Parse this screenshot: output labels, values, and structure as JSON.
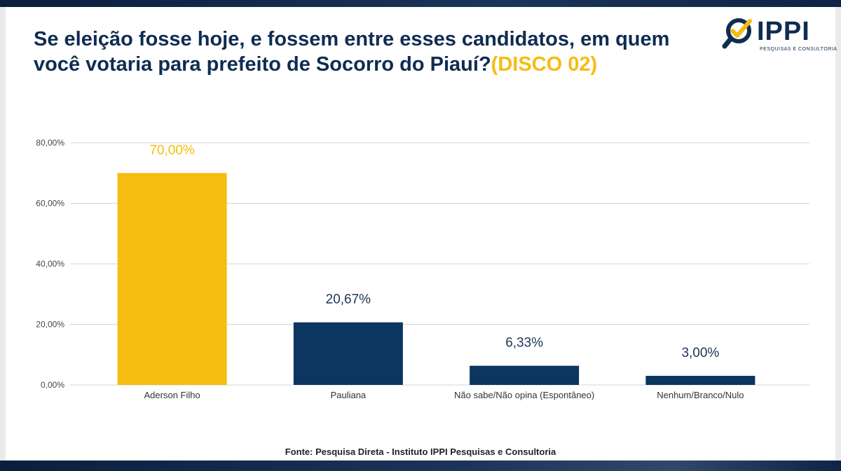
{
  "title": {
    "main": "Se eleição fosse hoje, e fossem entre esses candidatos, em quem você votaria para prefeito de Socorro do Piauí?",
    "highlight": "(DISCO 02)"
  },
  "logo": {
    "text": "IPPI",
    "subtitle": "PESQUISAS E CONSULTORIA",
    "icon": "magnifier-check-icon"
  },
  "colors": {
    "accent": "#f5bd0f",
    "primary": "#0c3560",
    "title": "#0f2c52"
  },
  "chart_data": {
    "type": "bar",
    "categories": [
      "Aderson Filho",
      "Pauliana",
      "Não sabe/Não opina (Espontâneo)",
      "Nenhum/Branco/Nulo"
    ],
    "values": [
      70.0,
      20.67,
      6.33,
      3.0
    ],
    "data_labels": [
      "70,00%",
      "20,67%",
      "6,33%",
      "3,00%"
    ],
    "bar_colors": [
      "#f5bd0f",
      "#0c3560",
      "#0c3560",
      "#0c3560"
    ],
    "ylim": [
      0,
      80
    ],
    "yticks": [
      0,
      20,
      40,
      60,
      80
    ],
    "ytick_labels": [
      "0,00%",
      "20,00%",
      "40,00%",
      "60,00%",
      "80,00%"
    ],
    "grid": true,
    "legend": "none"
  },
  "source": "Fonte: Pesquisa Direta - Instituto IPPI Pesquisas e Consultoria"
}
